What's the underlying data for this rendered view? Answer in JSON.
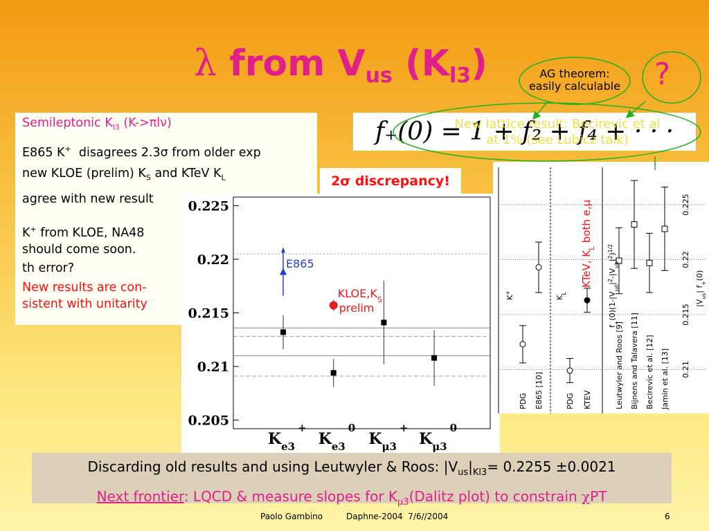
{
  "title": {
    "lambda": "λ",
    "main": "from V",
    "sub_us": "us",
    "open": "(K",
    "sub_l3": "l3",
    "close": ")"
  },
  "callouts": {
    "ag_line1": "AG theorem:",
    "ag_line2": "easily calculable",
    "question": "?",
    "lattice_line1": "New lattice result: Becirevic et al",
    "lattice_line2": "at 1% (see Lubicz talk)",
    "discrepancy": "2σ discrepancy!"
  },
  "formula": "f₊(0) = 1 + f₂ + f₄ + · · ·",
  "left_box": {
    "heading": [
      "Semileptonic K",
      "l3",
      " (K->πlν)"
    ],
    "lines": [
      [
        "E865 K",
        "+",
        "  disagrees 2.3σ from older exp"
      ],
      [
        "new KLOE (prelim) K",
        "S",
        " and KTeV K",
        "L"
      ],
      [
        "agree with new result"
      ],
      [
        "K",
        "+",
        " from KLOE, NA48"
      ],
      [
        "should come soon."
      ],
      [
        "th error?"
      ]
    ],
    "note": [
      "New results are con-",
      "sistent with unitarity"
    ]
  },
  "chart_data": [
    {
      "type": "errorbar",
      "categories": [
        {
          "base": "K",
          "sub": "e3",
          "sup": "+"
        },
        {
          "base": "K",
          "sub": "e3",
          "sup": "0"
        },
        {
          "base": "K",
          "sub": "μ3",
          "sup": "+"
        },
        {
          "base": "K",
          "sub": "μ3",
          "sup": "0"
        }
      ],
      "values": [
        0.2132,
        0.2094,
        0.2141,
        0.2108
      ],
      "errors": [
        0.0016,
        0.0013,
        0.0039,
        0.0026
      ],
      "color": "#000000",
      "ylim": [
        0.2042,
        0.2258
      ],
      "yticks": [
        0.205,
        0.21,
        0.215,
        0.22,
        0.225
      ],
      "reference_lines": [
        {
          "value": 0.2205,
          "style": "dotted"
        },
        {
          "value": 0.2136,
          "style": "solid"
        },
        {
          "value": 0.2128,
          "style": "dashed"
        },
        {
          "value": 0.211,
          "style": "solid"
        },
        {
          "value": 0.2091,
          "style": "dashed"
        }
      ],
      "extra_points": [
        {
          "category_index": 0,
          "value": 0.2188,
          "error": 0.0022,
          "color": "#2040d0",
          "marker": "triangle",
          "label": [
            "E865"
          ]
        },
        {
          "category_index": 1,
          "value": 0.2157,
          "error": 0.0005,
          "color": "#e02020",
          "marker": "circle",
          "label": [
            "KLOE,K",
            "S",
            "prelim"
          ]
        }
      ]
    },
    {
      "type": "errorbar-rotated",
      "categories": [
        "PDG",
        "E865 [10]",
        "PDG",
        "KTEV",
        "Leutwyler and Roos [9]",
        "Bijnens and Talavera [11]",
        "Becirevic et al. [12]",
        "Jamin et al. [13]"
      ],
      "values": [
        0.2123,
        0.2193,
        0.2099,
        0.2163,
        0.2199,
        0.2232,
        0.2197,
        0.2228
      ],
      "errors": [
        0.0017,
        0.0023,
        0.0011,
        0.0011,
        0.003,
        0.004,
        0.0027,
        0.0038
      ],
      "markers": [
        "open-circle",
        "open-circle",
        "open-circle",
        "filled-circle",
        "open-square",
        "open-square",
        "open-square",
        "open-square"
      ],
      "group_labels": [
        [
          "K",
          "+"
        ],
        [
          "K",
          "L"
        ]
      ],
      "y_label_left": [
        "f",
        "+",
        "(0)(1-|V",
        "ud",
        "|",
        "2",
        "-|V",
        "ub",
        "|",
        "2",
        ")",
        "1/2"
      ],
      "y_label_right": [
        "|V",
        "us",
        "| f",
        "+",
        "(0)"
      ],
      "annotation": [
        "KTeV, K",
        "L",
        " both e,μ"
      ],
      "ylim": [
        0.206,
        0.2284
      ],
      "yticks": [
        0.21,
        0.215,
        0.22,
        0.225
      ],
      "grid": true
    }
  ],
  "bottom_box": {
    "line1": [
      "Discarding old results and using Leutwyler & Roos: |V",
      "us",
      "|",
      "Kl3",
      "= 0.2255 ±0.0021"
    ],
    "line2": [
      "Next frontier",
      ": LQCD & measure slopes for K",
      "μ3",
      "(Dalitz plot) to constrain ",
      "χ",
      "PT"
    ]
  },
  "footer": {
    "author": "Paolo Gambino",
    "event": "Daphne-2004  7/6//2004",
    "page": "6"
  }
}
